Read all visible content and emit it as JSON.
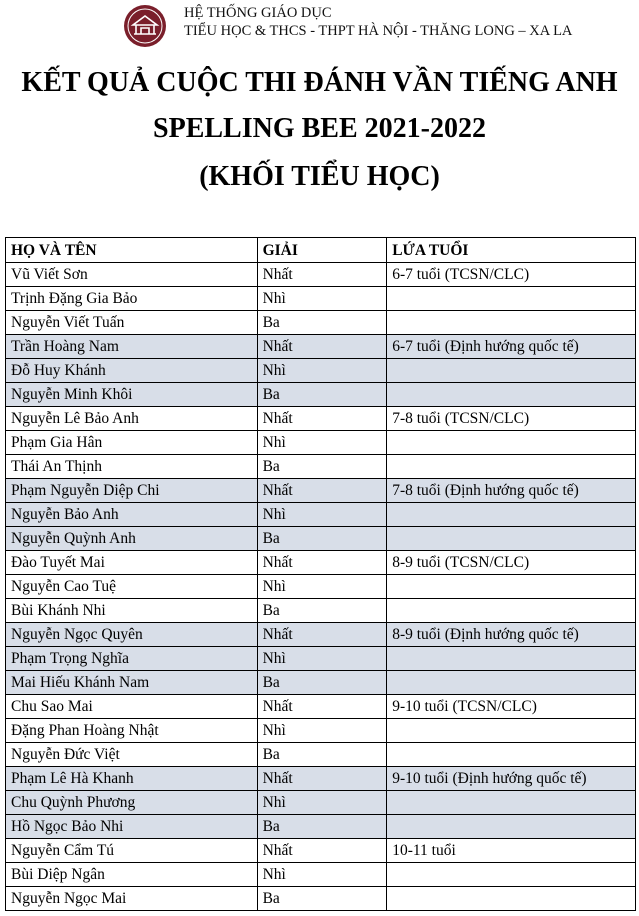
{
  "header": {
    "line1": "HỆ THỐNG GIÁO DỤC",
    "line2": "TIỂU HỌC & THCS - THPT HÀ NỘI - THĂNG LONG – XA LA"
  },
  "title": {
    "line1": "KẾT QUẢ CUỘC THI ĐÁNH VẦN TIẾNG ANH",
    "line2": "SPELLING BEE 2021-2022",
    "line3": "(KHỐI TIỂU HỌC)"
  },
  "table": {
    "columns": [
      "HỌ VÀ TÊN",
      "GIẢI",
      "LỨA TUỔI"
    ],
    "rows": [
      [
        "Vũ Viết Sơn",
        "Nhất",
        "6-7 tuổi (TCSN/CLC)"
      ],
      [
        "Trịnh Đặng Gia Bảo",
        "Nhì",
        null
      ],
      [
        "Nguyễn Viết Tuấn",
        "Ba",
        null
      ],
      [
        "Trần Hoàng Nam",
        "Nhất",
        "6-7 tuổi (Định hướng quốc tế)"
      ],
      [
        "Đỗ Huy Khánh",
        "Nhì",
        null
      ],
      [
        "Nguyễn Minh Khôi",
        "Ba",
        null
      ],
      [
        "Nguyễn Lê Bảo Anh",
        "Nhất",
        "7-8 tuổi (TCSN/CLC)"
      ],
      [
        "Phạm Gia Hân",
        "Nhì",
        null
      ],
      [
        "Thái An Thịnh",
        "Ba",
        null
      ],
      [
        "Phạm Nguyễn Diệp Chi",
        "Nhất",
        "7-8 tuổi (Định hướng quốc tế)"
      ],
      [
        "Nguyễn Bảo Anh",
        "Nhì",
        null
      ],
      [
        "Nguyễn Quỳnh Anh",
        "Ba",
        null
      ],
      [
        "Đào Tuyết Mai",
        "Nhất",
        "8-9 tuổi (TCSN/CLC)"
      ],
      [
        "Nguyễn Cao Tuệ",
        "Nhì",
        null
      ],
      [
        "Bùi Khánh Nhi",
        "Ba",
        null
      ],
      [
        "Nguyễn Ngọc Quyên",
        "Nhất",
        "8-9 tuổi (Định hướng quốc tế)"
      ],
      [
        "Phạm Trọng Nghĩa",
        "Nhì",
        null
      ],
      [
        "Mai Hiếu Khánh Nam",
        "Ba",
        null
      ],
      [
        "Chu Sao Mai",
        "Nhất",
        "9-10 tuổi (TCSN/CLC)"
      ],
      [
        "Đặng Phan Hoàng Nhật",
        "Nhì",
        null
      ],
      [
        "Nguyễn Đức Việt",
        "Ba",
        null
      ],
      [
        "Phạm Lê Hà Khanh",
        "Nhất",
        "9-10 tuổi (Định hướng quốc tế)"
      ],
      [
        "Chu Quỳnh Phương",
        "Nhì",
        null
      ],
      [
        "Hồ Ngọc Bảo Nhi",
        "Ba",
        null
      ],
      [
        "Nguyễn Cẩm Tú",
        "Nhất",
        "10-11 tuổi"
      ],
      [
        "Bùi Diệp Ngân",
        "Nhì",
        null
      ],
      [
        "Nguyễn Ngọc Mai",
        "Ba",
        null
      ]
    ]
  }
}
